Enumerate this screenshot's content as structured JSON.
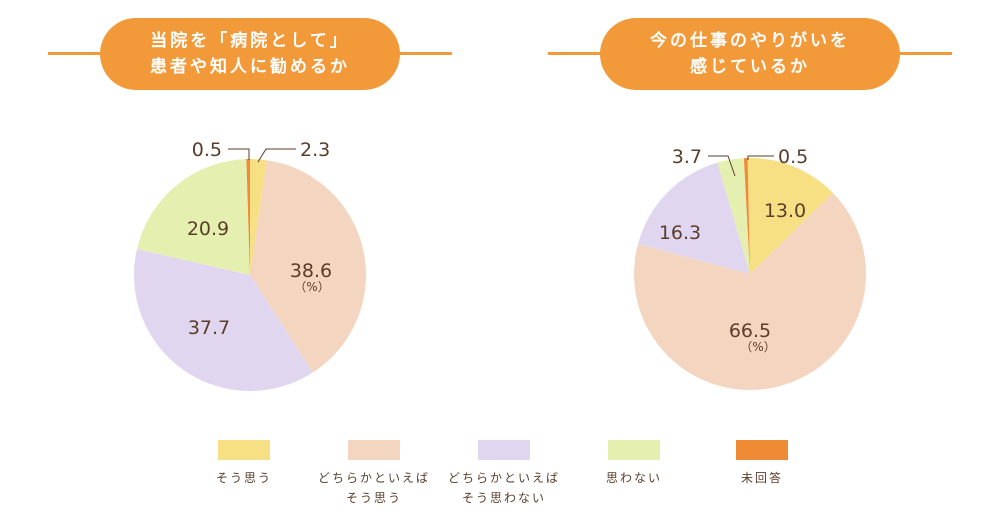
{
  "colors": {
    "yes": "#f7e083",
    "somewhat_yes": "#f4d5c0",
    "somewhat_no": "#e1d6f0",
    "no": "#e5f0b0",
    "no_answer": "#ef8a35",
    "header": "#f29a3a",
    "text": "#5a3e2b"
  },
  "charts": [
    {
      "title_line1": "当院を「病院として」",
      "title_line2": "患者や知人に勧めるか",
      "unit": "（%）"
    },
    {
      "title_line1": "今の仕事のやりがいを",
      "title_line2": "感じているか",
      "unit": "（%）"
    }
  ],
  "legend": [
    {
      "line1": "そう思う",
      "line2": ""
    },
    {
      "line1": "どちらかといえば",
      "line2": "そう思う"
    },
    {
      "line1": "どちらかといえば",
      "line2": "そう思わない"
    },
    {
      "line1": "思わない",
      "line2": ""
    },
    {
      "line1": "未回答",
      "line2": ""
    }
  ],
  "chart_data": [
    {
      "type": "pie",
      "title": "当院を「病院として」患者や知人に勧めるか",
      "unit": "%",
      "categories": [
        "そう思う",
        "どちらかといえばそう思う",
        "どちらかといえばそう思わない",
        "思わない",
        "未回答"
      ],
      "values": [
        2.3,
        38.6,
        37.7,
        20.9,
        0.5
      ],
      "labels": [
        "2.3",
        "38.6",
        "37.7",
        "20.9",
        "0.5"
      ],
      "start": "12 o'clock, clockwise"
    },
    {
      "type": "pie",
      "title": "今の仕事のやりがいを感じているか",
      "unit": "%",
      "categories": [
        "そう思う",
        "どちらかといえばそう思う",
        "どちらかといえばそう思わない",
        "思わない",
        "未回答"
      ],
      "values": [
        13.0,
        66.5,
        16.3,
        3.7,
        0.5
      ],
      "labels": [
        "13.0",
        "66.5",
        "16.3",
        "3.7",
        "0.5"
      ],
      "start": "12 o'clock, clockwise"
    }
  ]
}
